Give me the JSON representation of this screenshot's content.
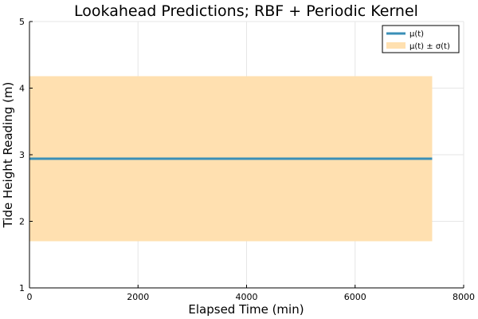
{
  "chart_data": {
    "type": "line",
    "title": "Lookahead Predictions; RBF + Periodic Kernel",
    "xlabel": "Elapsed Time (min)",
    "ylabel": "Tide Height Reading (m)",
    "xlim": [
      0,
      8000
    ],
    "ylim": [
      1,
      5
    ],
    "xticks": [
      0,
      2000,
      4000,
      6000,
      8000
    ],
    "yticks": [
      1,
      2,
      3,
      4,
      5
    ],
    "grid": true,
    "legend_position": "top-right",
    "series": [
      {
        "name": "μ(t)",
        "kind": "line",
        "color": "#3a8fb7",
        "x": [
          0,
          7420
        ],
        "y": [
          2.94,
          2.94
        ]
      },
      {
        "name": "μ(t) ± σ(t)",
        "kind": "band",
        "color": "#ffe0b0",
        "x": [
          0,
          7420
        ],
        "lower": [
          1.7,
          1.7
        ],
        "upper": [
          4.18,
          4.18
        ]
      }
    ]
  }
}
